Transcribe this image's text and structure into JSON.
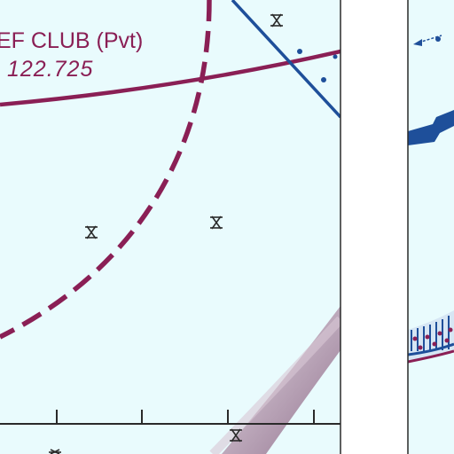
{
  "map": {
    "airport_label": "EF CLUB (Pvt)",
    "frequency": "122.725",
    "colors": {
      "background": "#e9fbfd",
      "airspace": "#8a1f55",
      "route": "#1e4f9a",
      "terrain_shading": "#b8a0b4",
      "panel_divider": "#ffffff",
      "obstacle": "#2a2a2a"
    },
    "symbols": {
      "obstacle_icon": "asterisk-obstacle-icon",
      "runway_icon": "runway-tick-icon"
    }
  }
}
